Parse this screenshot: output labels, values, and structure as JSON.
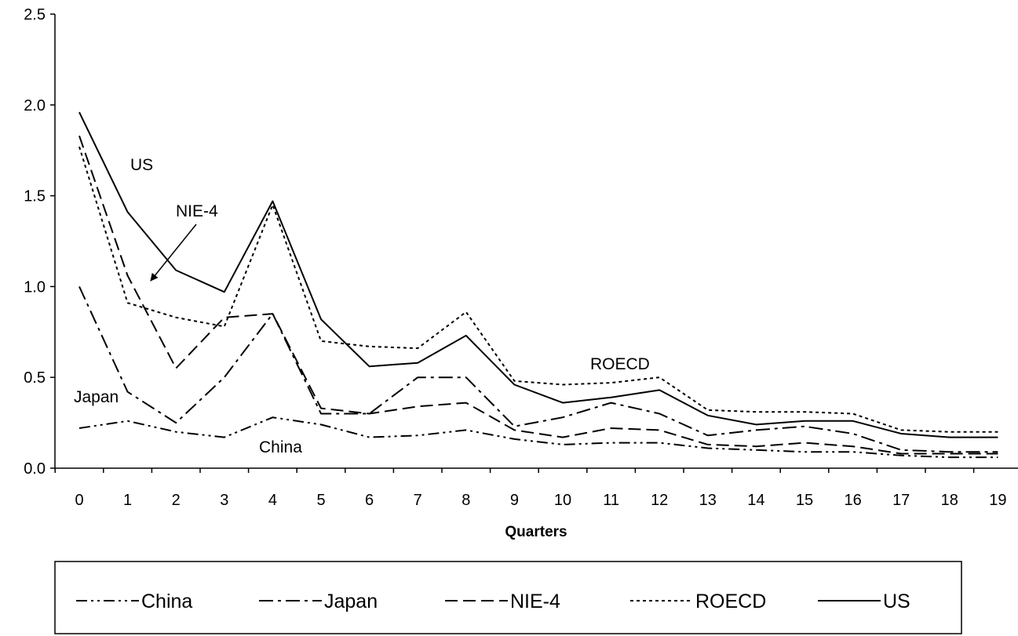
{
  "chart_data": {
    "type": "line",
    "title": "",
    "xlabel": "Quarters",
    "ylabel": "",
    "x": [
      0,
      1,
      2,
      3,
      4,
      5,
      6,
      7,
      8,
      9,
      10,
      11,
      12,
      13,
      14,
      15,
      16,
      17,
      18,
      19
    ],
    "ylim": [
      0,
      2.5
    ],
    "yticks": [
      0,
      0.5,
      1.0,
      1.5,
      2.0,
      2.5
    ],
    "ytick_labels": [
      "0.0",
      "0.5",
      "1.0",
      "1.5",
      "2.0",
      "2.5"
    ],
    "grid": false,
    "legend_position": "bottom",
    "series": [
      {
        "name": "China",
        "dash": "dash-dot-dot",
        "values": [
          0.22,
          0.26,
          0.2,
          0.17,
          0.28,
          0.24,
          0.17,
          0.18,
          0.21,
          0.16,
          0.13,
          0.14,
          0.14,
          0.11,
          0.1,
          0.09,
          0.09,
          0.07,
          0.06,
          0.06
        ]
      },
      {
        "name": "Japan",
        "dash": "dash-dot",
        "values": [
          1.0,
          0.42,
          0.25,
          0.5,
          0.85,
          0.3,
          0.3,
          0.5,
          0.5,
          0.23,
          0.28,
          0.36,
          0.3,
          0.18,
          0.21,
          0.23,
          0.19,
          0.1,
          0.09,
          0.09
        ]
      },
      {
        "name": "NIE-4",
        "dash": "dash",
        "values": [
          1.83,
          1.06,
          0.55,
          0.83,
          0.85,
          0.33,
          0.3,
          0.34,
          0.36,
          0.21,
          0.17,
          0.22,
          0.21,
          0.13,
          0.12,
          0.14,
          0.12,
          0.08,
          0.08,
          0.08
        ]
      },
      {
        "name": "ROECD",
        "dash": "dot",
        "values": [
          1.77,
          0.91,
          0.83,
          0.78,
          1.45,
          0.7,
          0.67,
          0.66,
          0.86,
          0.48,
          0.46,
          0.47,
          0.5,
          0.32,
          0.31,
          0.31,
          0.3,
          0.21,
          0.2,
          0.2
        ]
      },
      {
        "name": "US",
        "dash": "solid",
        "values": [
          1.96,
          1.41,
          1.09,
          0.97,
          1.47,
          0.82,
          0.56,
          0.58,
          0.73,
          0.46,
          0.36,
          0.39,
          0.43,
          0.29,
          0.24,
          0.26,
          0.26,
          0.19,
          0.17,
          0.17
        ]
      }
    ],
    "annotations": [
      {
        "text": "US",
        "series": "US"
      },
      {
        "text": "NIE-4",
        "series": "NIE-4",
        "arrow": true
      },
      {
        "text": "ROECD",
        "series": "ROECD"
      },
      {
        "text": "Japan",
        "series": "Japan"
      },
      {
        "text": "China",
        "series": "China"
      }
    ]
  }
}
